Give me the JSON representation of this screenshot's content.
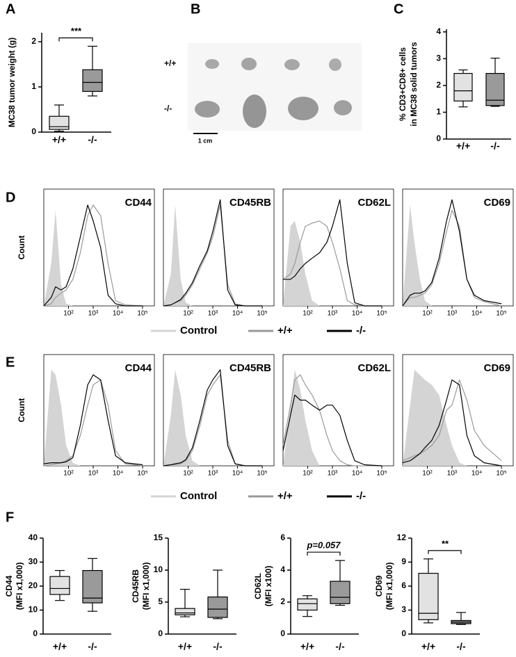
{
  "photo": {
    "panel": "B",
    "rows": [
      "+/+",
      "-/-"
    ],
    "scale_bar": "1 cm"
  },
  "chart_data": [
    {
      "type": "box",
      "panel": "A",
      "ylabel": [
        "MC38 tumor weight (g)"
      ],
      "categories": [
        "+/+",
        "-/-"
      ],
      "annotation": "***",
      "boxes": [
        {
          "color": "#e2e2e2",
          "min": 0.02,
          "q1": 0.06,
          "median": 0.12,
          "q3": 0.35,
          "max": 0.6
        },
        {
          "color": "#9a9a9a",
          "min": 0.8,
          "q1": 0.9,
          "median": 1.1,
          "q3": 1.38,
          "max": 1.9
        }
      ],
      "ylim": [
        0,
        2.2
      ],
      "yticks": [
        0,
        1,
        2
      ]
    },
    {
      "type": "box",
      "panel": "C",
      "ylabel": [
        "% CD3+CD8+ cells",
        "in MC38 solid tumors"
      ],
      "categories": [
        "+/+",
        "-/-"
      ],
      "boxes": [
        {
          "color": "#e2e2e2",
          "min": 1.2,
          "q1": 1.42,
          "median": 1.8,
          "q3": 2.45,
          "max": 2.58
        },
        {
          "color": "#9a9a9a",
          "min": 1.22,
          "q1": 1.25,
          "median": 1.45,
          "q3": 2.45,
          "max": 3.02
        }
      ],
      "ylim": [
        0,
        4.1
      ],
      "yticks": [
        0,
        1,
        2,
        3,
        4
      ]
    },
    {
      "type": "line",
      "panel": "D",
      "ylabel": [
        "Count"
      ],
      "title": "CD44",
      "xscale": "log",
      "legend": [
        {
          "name": "Control",
          "color": "#d4d4d4"
        },
        {
          "name": "+/+",
          "color": "#999999"
        },
        {
          "name": "-/-",
          "color": "#000000"
        }
      ],
      "x": [
        10,
        20,
        30,
        50,
        80,
        150,
        300,
        600,
        1000,
        2000,
        4000,
        8000,
        20000,
        100000
      ],
      "series": [
        {
          "color": "#d4d4d4",
          "fill": true,
          "values": [
            0,
            40,
            90,
            20,
            2,
            0,
            0,
            0,
            0,
            0,
            0,
            0,
            0,
            0
          ]
        },
        {
          "color": "#999999",
          "values": [
            0,
            2,
            8,
            12,
            15,
            25,
            50,
            85,
            95,
            85,
            40,
            5,
            1,
            0
          ]
        },
        {
          "color": "#000000",
          "values": [
            0,
            8,
            18,
            15,
            18,
            35,
            65,
            95,
            80,
            55,
            10,
            2,
            0,
            0
          ]
        }
      ],
      "xlim": [
        10,
        300000
      ],
      "ylim": [
        0,
        110
      ],
      "xticks": [
        {
          "value": 100,
          "label": "10²"
        },
        {
          "value": 1000,
          "label": "10³"
        },
        {
          "value": 10000,
          "label": "10⁴"
        },
        {
          "value": 100000,
          "label": "10⁵"
        }
      ]
    },
    {
      "type": "line",
      "title": "CD45RB",
      "xscale": "log",
      "x": [
        10,
        20,
        30,
        50,
        80,
        150,
        300,
        600,
        1000,
        2000,
        4000,
        8000,
        20000,
        100000
      ],
      "series": [
        {
          "color": "#d4d4d4",
          "fill": true,
          "values": [
            0,
            30,
            95,
            25,
            3,
            0,
            0,
            0,
            0,
            0,
            0,
            0,
            0,
            0
          ]
        },
        {
          "color": "#999999",
          "values": [
            0,
            1,
            3,
            5,
            10,
            20,
            35,
            50,
            65,
            95,
            20,
            2,
            0,
            0
          ]
        },
        {
          "color": "#000000",
          "values": [
            0,
            1,
            3,
            6,
            12,
            22,
            38,
            52,
            70,
            100,
            15,
            1,
            0,
            0
          ]
        }
      ],
      "xlim": [
        10,
        300000
      ],
      "ylim": [
        0,
        110
      ],
      "xticks": [
        {
          "value": 100,
          "label": "10²"
        },
        {
          "value": 1000,
          "label": "10³"
        },
        {
          "value": 10000,
          "label": "10⁴"
        },
        {
          "value": 100000,
          "label": "10⁵"
        }
      ]
    },
    {
      "type": "line",
      "title": "CD62L",
      "xscale": "log",
      "x": [
        10,
        20,
        30,
        50,
        80,
        150,
        300,
        600,
        1000,
        2000,
        4000,
        8000,
        20000,
        100000
      ],
      "series": [
        {
          "color": "#d4d4d4",
          "fill": true,
          "values": [
            0,
            75,
            80,
            60,
            30,
            5,
            0,
            0,
            0,
            0,
            0,
            0,
            0,
            0
          ]
        },
        {
          "color": "#999999",
          "values": [
            25,
            30,
            40,
            60,
            75,
            78,
            80,
            75,
            60,
            35,
            5,
            1,
            0,
            0
          ]
        },
        {
          "color": "#000000",
          "values": [
            25,
            25,
            28,
            35,
            40,
            45,
            50,
            60,
            75,
            100,
            40,
            3,
            0,
            0
          ]
        }
      ],
      "xlim": [
        10,
        300000
      ],
      "ylim": [
        0,
        110
      ],
      "xticks": [
        {
          "value": 100,
          "label": "10²"
        },
        {
          "value": 1000,
          "label": "10³"
        },
        {
          "value": 10000,
          "label": "10⁴"
        },
        {
          "value": 100000,
          "label": "10⁵"
        }
      ]
    },
    {
      "type": "line",
      "title": "CD69",
      "xscale": "log",
      "x": [
        10,
        20,
        30,
        50,
        80,
        150,
        300,
        600,
        1000,
        2000,
        4000,
        8000,
        20000,
        100000
      ],
      "series": [
        {
          "color": "#d4d4d4",
          "fill": true,
          "values": [
            0,
            95,
            60,
            25,
            5,
            0,
            0,
            0,
            0,
            0,
            0,
            0,
            0,
            0
          ]
        },
        {
          "color": "#999999",
          "values": [
            0,
            8,
            8,
            10,
            12,
            20,
            40,
            70,
            90,
            75,
            25,
            8,
            4,
            0
          ]
        },
        {
          "color": "#000000",
          "values": [
            0,
            10,
            12,
            12,
            14,
            22,
            45,
            80,
            100,
            70,
            25,
            10,
            5,
            2
          ]
        }
      ],
      "xlim": [
        10,
        300000
      ],
      "ylim": [
        0,
        110
      ],
      "xticks": [
        {
          "value": 100,
          "label": "10²"
        },
        {
          "value": 1000,
          "label": "10³"
        },
        {
          "value": 10000,
          "label": "10⁴"
        },
        {
          "value": 100000,
          "label": "10⁵"
        }
      ]
    },
    {
      "type": "line",
      "panel": "E",
      "ylabel": [
        "Count"
      ],
      "title": "CD44",
      "xscale": "log",
      "legend": [
        {
          "name": "Control",
          "color": "#d4d4d4"
        },
        {
          "name": "+/+",
          "color": "#999999"
        },
        {
          "name": "-/-",
          "color": "#000000"
        }
      ],
      "x": [
        10,
        20,
        30,
        50,
        80,
        150,
        300,
        600,
        1000,
        2000,
        4000,
        8000,
        20000,
        100000
      ],
      "series": [
        {
          "color": "#d4d4d4",
          "fill": true,
          "values": [
            0,
            95,
            90,
            60,
            20,
            3,
            0,
            0,
            0,
            0,
            0,
            0,
            0,
            0
          ]
        },
        {
          "color": "#999999",
          "values": [
            0,
            1,
            2,
            3,
            5,
            10,
            30,
            60,
            80,
            85,
            60,
            15,
            2,
            0
          ]
        },
        {
          "color": "#000000",
          "values": [
            2,
            3,
            3,
            3,
            4,
            8,
            40,
            80,
            90,
            85,
            45,
            10,
            3,
            1
          ]
        }
      ],
      "xlim": [
        10,
        300000
      ],
      "ylim": [
        0,
        110
      ],
      "xticks": [
        {
          "value": 100,
          "label": "10²"
        },
        {
          "value": 1000,
          "label": "10³"
        },
        {
          "value": 10000,
          "label": "10⁴"
        },
        {
          "value": 100000,
          "label": "10⁵"
        }
      ]
    },
    {
      "type": "line",
      "title": "CD45RB",
      "xscale": "log",
      "x": [
        10,
        20,
        30,
        50,
        80,
        150,
        300,
        600,
        1000,
        2000,
        4000,
        8000,
        20000,
        100000
      ],
      "series": [
        {
          "color": "#d4d4d4",
          "fill": true,
          "values": [
            0,
            50,
            95,
            70,
            30,
            5,
            0,
            0,
            0,
            0,
            0,
            0,
            0,
            0
          ]
        },
        {
          "color": "#999999",
          "values": [
            0,
            1,
            1,
            2,
            5,
            15,
            40,
            70,
            80,
            90,
            25,
            2,
            0,
            0
          ]
        },
        {
          "color": "#000000",
          "values": [
            0,
            1,
            2,
            3,
            6,
            18,
            45,
            75,
            85,
            95,
            20,
            2,
            0,
            0
          ]
        }
      ],
      "xlim": [
        10,
        300000
      ],
      "ylim": [
        0,
        110
      ],
      "xticks": [
        {
          "value": 100,
          "label": "10²"
        },
        {
          "value": 1000,
          "label": "10³"
        },
        {
          "value": 10000,
          "label": "10⁴"
        },
        {
          "value": 100000,
          "label": "10⁵"
        }
      ]
    },
    {
      "type": "line",
      "title": "CD62L",
      "xscale": "log",
      "x": [
        10,
        20,
        30,
        50,
        80,
        150,
        300,
        600,
        1000,
        2000,
        4000,
        8000,
        20000,
        100000
      ],
      "series": [
        {
          "color": "#d4d4d4",
          "fill": true,
          "values": [
            0,
            60,
            95,
            75,
            45,
            15,
            0,
            0,
            0,
            0,
            0,
            0,
            0,
            0
          ]
        },
        {
          "color": "#999999",
          "values": [
            20,
            60,
            85,
            90,
            80,
            70,
            55,
            30,
            15,
            5,
            1,
            0,
            0,
            0
          ]
        },
        {
          "color": "#000000",
          "values": [
            15,
            50,
            70,
            65,
            65,
            60,
            55,
            60,
            60,
            50,
            25,
            5,
            1,
            0
          ]
        }
      ],
      "xlim": [
        10,
        300000
      ],
      "ylim": [
        0,
        110
      ],
      "xticks": [
        {
          "value": 100,
          "label": "10²"
        },
        {
          "value": 1000,
          "label": "10³"
        },
        {
          "value": 10000,
          "label": "10⁴"
        },
        {
          "value": 100000,
          "label": "10⁵"
        }
      ]
    },
    {
      "type": "line",
      "title": "CD69",
      "xscale": "log",
      "x": [
        10,
        20,
        30,
        50,
        80,
        150,
        300,
        600,
        1000,
        2000,
        4000,
        8000,
        20000,
        100000
      ],
      "series": [
        {
          "color": "#d4d4d4",
          "fill": true,
          "values": [
            0,
            60,
            95,
            90,
            85,
            80,
            70,
            40,
            20,
            3,
            0,
            0,
            0,
            0
          ]
        },
        {
          "color": "#999999",
          "values": [
            5,
            8,
            10,
            12,
            15,
            20,
            30,
            55,
            60,
            85,
            65,
            35,
            20,
            5
          ]
        },
        {
          "color": "#000000",
          "values": [
            3,
            5,
            8,
            12,
            18,
            25,
            40,
            65,
            85,
            80,
            30,
            10,
            3,
            0
          ]
        }
      ],
      "xlim": [
        10,
        300000
      ],
      "ylim": [
        0,
        110
      ],
      "xticks": [
        {
          "value": 100,
          "label": "10²"
        },
        {
          "value": 1000,
          "label": "10³"
        },
        {
          "value": 10000,
          "label": "10⁴"
        },
        {
          "value": 100000,
          "label": "10⁵"
        }
      ]
    },
    {
      "type": "box",
      "panel": "F",
      "ylabel": [
        "CD44",
        "(MFI x1,000)"
      ],
      "categories": [
        "+/+",
        "-/-"
      ],
      "boxes": [
        {
          "color": "#e2e2e2",
          "min": 14,
          "q1": 16.5,
          "median": 19,
          "q3": 24,
          "max": 26.5
        },
        {
          "color": "#9a9a9a",
          "min": 9.5,
          "q1": 13,
          "median": 15,
          "q3": 26.5,
          "max": 31.5
        }
      ],
      "ylim": [
        0,
        40
      ],
      "yticks": [
        0,
        10,
        20,
        30,
        40
      ]
    },
    {
      "type": "box",
      "ylabel": [
        "CD45RB",
        "(MFI x1,000)"
      ],
      "categories": [
        "+/+",
        "-/-"
      ],
      "boxes": [
        {
          "color": "#e2e2e2",
          "min": 2.7,
          "q1": 3,
          "median": 3.3,
          "q3": 4,
          "max": 7
        },
        {
          "color": "#9a9a9a",
          "min": 2.4,
          "q1": 2.6,
          "median": 3.9,
          "q3": 5.8,
          "max": 10
        }
      ],
      "ylim": [
        0,
        15
      ],
      "yticks": [
        0,
        5,
        10,
        15
      ]
    },
    {
      "type": "box",
      "ylabel": [
        "CD62L",
        "(MFI x100)"
      ],
      "categories": [
        "+/+",
        "-/-"
      ],
      "annotation": "p=0.057",
      "boxes": [
        {
          "color": "#e2e2e2",
          "min": 1.1,
          "q1": 1.5,
          "median": 1.9,
          "q3": 2.2,
          "max": 2.4
        },
        {
          "color": "#9a9a9a",
          "min": 1.8,
          "q1": 1.9,
          "median": 2.3,
          "q3": 3.3,
          "max": 4.6
        }
      ],
      "ylim": [
        0,
        6
      ],
      "yticks": [
        0,
        2,
        4,
        6
      ]
    },
    {
      "type": "box",
      "ylabel": [
        "CD69",
        "(MFI x1,000)"
      ],
      "categories": [
        "+/+",
        "-/-"
      ],
      "annotation": "**",
      "boxes": [
        {
          "color": "#e2e2e2",
          "min": 1.4,
          "q1": 1.8,
          "median": 2.6,
          "q3": 7.6,
          "max": 9.4
        },
        {
          "color": "#9a9a9a",
          "min": 1.2,
          "q1": 1.3,
          "median": 1.5,
          "q3": 1.7,
          "max": 2.7
        }
      ],
      "ylim": [
        0,
        12
      ],
      "yticks": [
        0,
        3,
        6,
        9,
        12
      ]
    }
  ]
}
